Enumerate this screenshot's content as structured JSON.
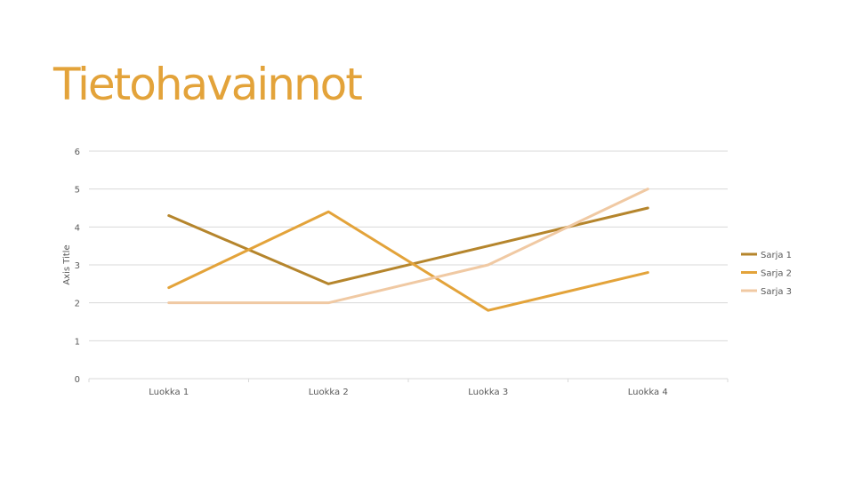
{
  "slide": {
    "title": "Tietohavainnot"
  },
  "chart_data": {
    "type": "line",
    "title": "",
    "xlabel": "",
    "ylabel": "Axis Title",
    "ylim": [
      0,
      6
    ],
    "yticks": [
      0,
      1,
      2,
      3,
      4,
      5,
      6
    ],
    "grid": true,
    "legend": "right",
    "categories": [
      "Luokka 1",
      "Luokka 2",
      "Luokka 3",
      "Luokka 4"
    ],
    "series": [
      {
        "name": "Sarja 1",
        "values": [
          4.3,
          2.5,
          3.5,
          4.5
        ],
        "color": "#b5852c"
      },
      {
        "name": "Sarja 2",
        "values": [
          2.4,
          4.4,
          1.8,
          2.8
        ],
        "color": "#e3a33a"
      },
      {
        "name": "Sarja 3",
        "values": [
          2.0,
          2.0,
          3.0,
          5.0
        ],
        "color": "#f0c9a3"
      }
    ]
  }
}
